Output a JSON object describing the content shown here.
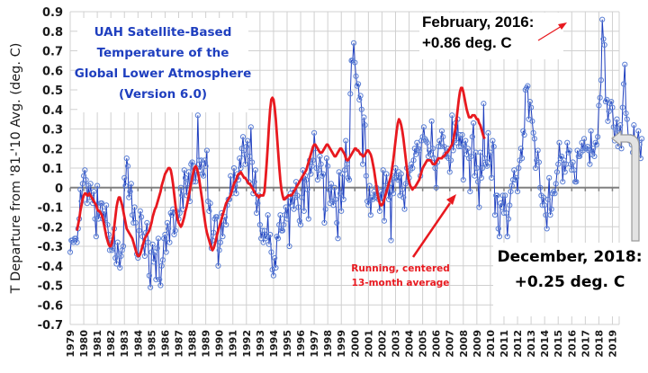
{
  "chart_data": {
    "type": "line",
    "title": [
      "UAH Satellite-Based",
      "Temperature of the",
      "Global Lower Atmosphere",
      "(Version 6.0)"
    ],
    "xlabel": "",
    "ylabel": "T Departure from '81-'10 Avg. (deg. C)",
    "ylim": [
      -0.7,
      0.9
    ],
    "xlim": [
      1979,
      2019.5
    ],
    "yticks": [
      "0.9",
      "0.8",
      "0.7",
      "0.6",
      "0.5",
      "0.4",
      "0.3",
      "0.2",
      "0.1",
      "0",
      "-0.1",
      "-0.2",
      "-0.3",
      "-0.4",
      "-0.5",
      "-0.6",
      "-0.7"
    ],
    "xticks": [
      "1979",
      "1980",
      "1981",
      "1982",
      "1983",
      "1984",
      "1985",
      "1986",
      "1987",
      "1988",
      "1989",
      "1990",
      "1991",
      "1992",
      "1993",
      "1994",
      "1995",
      "1996",
      "1997",
      "1998",
      "1999",
      "2000",
      "2001",
      "2002",
      "2003",
      "2004",
      "2005",
      "2006",
      "2007",
      "2008",
      "2009",
      "2010",
      "2011",
      "2012",
      "2013",
      "2014",
      "2015",
      "2016",
      "2017",
      "2018",
      "2019"
    ],
    "grid": true,
    "legend": "none",
    "colors": {
      "monthly": "#1f3fbf",
      "monthly_marker": "#5b7fd4",
      "running": "#e8191f",
      "zero_line": "#808080",
      "grid": "#d0d0d0"
    },
    "series": [
      {
        "name": "Monthly anomaly",
        "start": "1979-01",
        "values": [
          -0.33,
          -0.27,
          -0.27,
          -0.28,
          -0.26,
          -0.26,
          -0.28,
          -0.21,
          -0.16,
          -0.01,
          -0.07,
          0.02,
          0.06,
          0.09,
          0.04,
          -0.08,
          0.01,
          -0.05,
          0.02,
          -0.05,
          -0.08,
          -0.02,
          -0.16,
          -0.25,
          0.01,
          -0.16,
          -0.14,
          -0.08,
          -0.08,
          -0.16,
          -0.12,
          -0.18,
          -0.09,
          -0.19,
          -0.24,
          -0.32,
          -0.27,
          -0.32,
          -0.31,
          -0.21,
          -0.36,
          -0.39,
          -0.28,
          -0.34,
          -0.41,
          -0.35,
          -0.32,
          -0.3,
          0.05,
          0.01,
          0.15,
          0.11,
          -0.05,
          -0.02,
          0.02,
          -0.14,
          -0.18,
          -0.1,
          -0.18,
          -0.34,
          -0.36,
          -0.22,
          -0.12,
          -0.15,
          -0.25,
          -0.3,
          -0.35,
          -0.23,
          -0.18,
          -0.28,
          -0.45,
          -0.51,
          -0.33,
          -0.29,
          -0.38,
          -0.33,
          -0.47,
          -0.31,
          -0.26,
          -0.47,
          -0.5,
          -0.4,
          -0.37,
          -0.26,
          -0.24,
          -0.33,
          -0.18,
          -0.21,
          -0.28,
          -0.13,
          -0.14,
          -0.11,
          -0.24,
          -0.22,
          -0.12,
          -0.13,
          -0.16,
          -0.13,
          0.0,
          -0.04,
          -0.11,
          0.09,
          0.05,
          -0.04,
          0.02,
          0.08,
          -0.07,
          0.12,
          0.13,
          0.03,
          0.11,
          0.03,
          0.1,
          0.37,
          0.14,
          0.09,
          0.14,
          0.07,
          0.06,
          0.14,
          0.11,
          0.19,
          -0.07,
          -0.12,
          -0.08,
          -0.31,
          -0.27,
          -0.23,
          -0.16,
          -0.15,
          -0.15,
          -0.4,
          -0.32,
          -0.28,
          -0.13,
          -0.25,
          -0.17,
          -0.15,
          -0.19,
          -0.09,
          -0.06,
          -0.06,
          0.06,
          -0.03,
          -0.01,
          0.1,
          0.01,
          -0.03,
          0.07,
          0.04,
          0.15,
          0.1,
          0.2,
          0.26,
          0.17,
          0.12,
          0.21,
          0.24,
          0.03,
          0.16,
          0.31,
          0.13,
          -0.03,
          0.03,
          0.09,
          -0.13,
          -0.08,
          -0.04,
          -0.19,
          -0.26,
          -0.22,
          -0.28,
          -0.22,
          -0.26,
          -0.25,
          -0.14,
          -0.29,
          -0.24,
          -0.33,
          -0.42,
          -0.45,
          -0.36,
          -0.41,
          -0.25,
          -0.26,
          -0.19,
          -0.14,
          -0.22,
          -0.22,
          -0.19,
          -0.14,
          -0.1,
          -0.16,
          -0.05,
          -0.3,
          -0.03,
          -0.09,
          -0.01,
          -0.11,
          -0.05,
          0.03,
          -0.04,
          -0.1,
          -0.17,
          -0.19,
          -0.05,
          0.09,
          -0.12,
          0.06,
          0.04,
          -0.01,
          -0.16,
          0.14,
          0.07,
          0.11,
          0.14,
          0.28,
          0.2,
          0.1,
          0.04,
          0.09,
          0.16,
          0.12,
          0.06,
          0.07,
          -0.18,
          -0.11,
          0.15,
          0.11,
          -0.01,
          -0.08,
          0.02,
          -0.07,
          -0.09,
          0.0,
          -0.06,
          -0.18,
          -0.26,
          0.08,
          -0.03,
          -0.12,
          0.07,
          -0.06,
          0.09,
          0.24,
          0.12,
          0.05,
          0.04,
          0.48,
          0.65,
          0.65,
          0.74,
          0.64,
          0.57,
          0.52,
          0.53,
          0.45,
          0.47,
          0.4,
          0.12,
          0.36,
          0.32,
          0.06,
          -0.07,
          -0.09,
          0.01,
          -0.14,
          -0.05,
          -0.06,
          -0.02,
          -0.05,
          0.0,
          -0.04,
          -0.06,
          -0.12,
          -0.02,
          -0.07,
          0.09,
          -0.17,
          0.01,
          0.07,
          0.0,
          -0.06,
          0.02,
          -0.27,
          0.06,
          -0.03,
          0.05,
          0.1,
          0.05,
          0.04,
          0.08,
          -0.04,
          0.07,
          -0.01,
          -0.05,
          -0.11,
          0.02,
          0.1,
          0.03,
          0.05,
          0.09,
          0.12,
          0.1,
          0.14,
          0.2,
          0.17,
          0.23,
          0.2,
          0.19,
          0.06,
          0.24,
          0.26,
          0.31,
          0.25,
          0.24,
          0.23,
          0.16,
          0.19,
          0.17,
          0.34,
          0.2,
          0.15,
          0.1,
          0.0,
          0.13,
          0.21,
          0.24,
          0.21,
          0.29,
          0.26,
          0.21,
          0.17,
          0.16,
          0.2,
          0.15,
          0.08,
          0.14,
          0.37,
          0.19,
          0.24,
          0.33,
          0.23,
          0.35,
          0.21,
          0.27,
          0.21,
          0.27,
          0.04,
          0.22,
          0.24,
          0.17,
          0.2,
          0.15,
          -0.02,
          0.16,
          0.26,
          0.33,
          0.06,
          0.18,
          0.1,
          0.03,
          -0.1,
          0.18,
          0.05,
          0.1,
          0.43,
          0.15,
          0.12,
          0.11,
          0.28,
          0.13,
          0.18,
          0.05,
          0.24,
          0.21,
          -0.14,
          -0.04,
          -0.04,
          -0.21,
          -0.25,
          -0.08,
          -0.1,
          -0.04,
          -0.13,
          -0.04,
          -0.13,
          -0.25,
          -0.16,
          -0.09,
          -0.02,
          0.01,
          0.04,
          0.09,
          0.04,
          0.05,
          -0.02,
          0.1,
          0.14,
          0.2,
          0.15,
          0.29,
          0.27,
          0.5,
          0.51,
          0.52,
          0.35,
          0.44,
          0.41,
          0.34,
          0.28,
          0.25,
          0.1,
          0.14,
          0.19,
          0.13,
          0.0,
          -0.04,
          -0.09,
          -0.05,
          -0.09,
          -0.14,
          -0.21,
          -0.06,
          0.05,
          -0.14,
          -0.11,
          -0.03,
          -0.02,
          -0.03,
          0.02,
          0.08,
          0.12,
          0.23,
          0.15,
          0.16,
          0.03,
          0.14,
          0.08,
          0.12,
          0.23,
          0.18,
          0.19,
          0.12,
          0.09,
          0.13,
          0.09,
          0.03,
          0.03,
          0.19,
          0.16,
          0.16,
          0.18,
          0.23,
          0.19,
          0.25,
          0.2,
          0.2,
          0.21,
          0.19,
          0.12,
          0.29,
          0.17,
          0.2,
          0.16,
          0.23,
          0.22,
          0.26,
          0.42,
          0.46,
          0.55,
          0.86,
          0.76,
          0.73,
          0.44,
          0.45,
          0.34,
          0.39,
          0.43,
          0.44,
          0.41,
          0.31,
          0.24,
          0.3,
          0.35,
          0.21,
          0.28,
          0.32,
          0.2,
          0.41,
          0.53,
          0.63,
          0.38,
          0.35,
          0.26,
          0.24,
          0.26,
          0.22,
          0.18,
          0.32,
          0.21,
          0.19,
          0.24,
          0.29,
          0.22,
          0.15,
          0.25
        ]
      },
      {
        "name": "Running, centered 13-month average",
        "start": "1979-07",
        "values": [
          -0.22,
          -0.19,
          -0.16,
          -0.12,
          -0.09,
          -0.06,
          -0.04,
          -0.03,
          -0.03,
          -0.04,
          -0.04,
          -0.03,
          -0.04,
          -0.05,
          -0.06,
          -0.07,
          -0.08,
          -0.09,
          -0.11,
          -0.12,
          -0.12,
          -0.13,
          -0.14,
          -0.16,
          -0.19,
          -0.22,
          -0.25,
          -0.27,
          -0.29,
          -0.3,
          -0.3,
          -0.28,
          -0.25,
          -0.2,
          -0.15,
          -0.1,
          -0.07,
          -0.05,
          -0.05,
          -0.07,
          -0.09,
          -0.12,
          -0.15,
          -0.18,
          -0.21,
          -0.22,
          -0.23,
          -0.24,
          -0.25,
          -0.26,
          -0.28,
          -0.3,
          -0.32,
          -0.34,
          -0.35,
          -0.35,
          -0.34,
          -0.32,
          -0.3,
          -0.28,
          -0.26,
          -0.25,
          -0.24,
          -0.23,
          -0.22,
          -0.2,
          -0.18,
          -0.15,
          -0.13,
          -0.11,
          -0.1,
          -0.08,
          -0.06,
          -0.04,
          -0.02,
          0.01,
          0.03,
          0.05,
          0.07,
          0.08,
          0.09,
          0.1,
          0.1,
          0.09,
          0.06,
          0.02,
          -0.03,
          -0.08,
          -0.13,
          -0.16,
          -0.18,
          -0.19,
          -0.2,
          -0.19,
          -0.17,
          -0.15,
          -0.12,
          -0.1,
          -0.07,
          -0.04,
          -0.01,
          0.02,
          0.05,
          0.08,
          0.1,
          0.11,
          0.1,
          0.08,
          0.05,
          0.01,
          -0.03,
          -0.07,
          -0.12,
          -0.16,
          -0.2,
          -0.23,
          -0.25,
          -0.27,
          -0.29,
          -0.31,
          -0.32,
          -0.31,
          -0.29,
          -0.27,
          -0.24,
          -0.22,
          -0.2,
          -0.18,
          -0.16,
          -0.14,
          -0.12,
          -0.1,
          -0.08,
          -0.07,
          -0.06,
          -0.05,
          -0.04,
          -0.02,
          0.0,
          0.02,
          0.03,
          0.04,
          0.06,
          0.07,
          0.07,
          0.08,
          0.07,
          0.06,
          0.05,
          0.05,
          0.04,
          0.03,
          0.02,
          0.02,
          0.01,
          0.0,
          -0.01,
          -0.02,
          -0.03,
          -0.04,
          -0.04,
          -0.05,
          -0.04,
          -0.04,
          -0.04,
          -0.04,
          -0.02,
          0.05,
          0.13,
          0.22,
          0.32,
          0.4,
          0.45,
          0.46,
          0.45,
          0.41,
          0.35,
          0.27,
          0.19,
          0.11,
          0.04,
          -0.01,
          -0.04,
          -0.06,
          -0.06,
          -0.05,
          -0.05,
          -0.04,
          -0.04,
          -0.04,
          -0.04,
          -0.03,
          -0.02,
          -0.01,
          0.0,
          0.01,
          0.02,
          0.03,
          0.04,
          0.05,
          0.06,
          0.07,
          0.08,
          0.09,
          0.11,
          0.13,
          0.15,
          0.17,
          0.19,
          0.21,
          0.22,
          0.22,
          0.21,
          0.2,
          0.19,
          0.18,
          0.18,
          0.18,
          0.19,
          0.2,
          0.21,
          0.22,
          0.22,
          0.21,
          0.2,
          0.19,
          0.18,
          0.17,
          0.16,
          0.16,
          0.17,
          0.18,
          0.19,
          0.2,
          0.2,
          0.19,
          0.18,
          0.17,
          0.15,
          0.14,
          0.14,
          0.15,
          0.16,
          0.17,
          0.18,
          0.19,
          0.2,
          0.2,
          0.19,
          0.19,
          0.18,
          0.17,
          0.17,
          0.16,
          0.16,
          0.17,
          0.18,
          0.19,
          0.19,
          0.18,
          0.17,
          0.15,
          0.12,
          0.09,
          0.05,
          0.01,
          -0.03,
          -0.06,
          -0.08,
          -0.09,
          -0.09,
          -0.08,
          -0.06,
          -0.04,
          -0.02,
          0.0,
          0.02,
          0.04,
          0.06,
          0.1,
          0.14,
          0.19,
          0.24,
          0.29,
          0.33,
          0.35,
          0.34,
          0.32,
          0.29,
          0.25,
          0.2,
          0.15,
          0.1,
          0.06,
          0.03,
          0.01,
          0.0,
          -0.01,
          0.0,
          0.0,
          0.01,
          0.02,
          0.03,
          0.04,
          0.06,
          0.08,
          0.1,
          0.11,
          0.12,
          0.13,
          0.14,
          0.14,
          0.14,
          0.14,
          0.13,
          0.12,
          0.12,
          0.12,
          0.13,
          0.14,
          0.15,
          0.15,
          0.15,
          0.15,
          0.16,
          0.16,
          0.17,
          0.18,
          0.18,
          0.19,
          0.2,
          0.21,
          0.22,
          0.24,
          0.27,
          0.3,
          0.35,
          0.4,
          0.45,
          0.49,
          0.51,
          0.51,
          0.49,
          0.46,
          0.43,
          0.4,
          0.38,
          0.36,
          0.36,
          0.36,
          0.37,
          0.37,
          0.37,
          0.36,
          0.35,
          0.35,
          0.33,
          0.32,
          0.3,
          0.28,
          0.26,
          0.25
        ]
      }
    ],
    "annotations": [
      {
        "text": [
          "February, 2016:",
          "+0.86 deg. C"
        ],
        "target": {
          "x": "2016-02",
          "y": 0.86
        }
      },
      {
        "text": [
          "December, 2018:",
          "+0.25 deg. C"
        ],
        "target": {
          "x": "2018-12",
          "y": 0.25
        }
      },
      {
        "text": [
          "Running, centered",
          "13-month average"
        ],
        "target": {
          "x": "2008-07",
          "y": -0.05
        }
      }
    ]
  }
}
